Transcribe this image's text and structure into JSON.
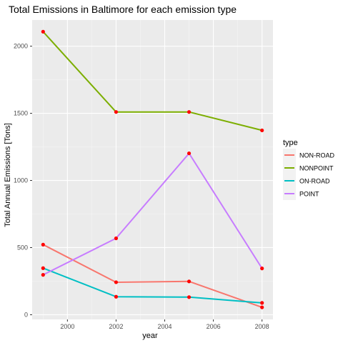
{
  "chart_data": {
    "type": "line",
    "title": "Total Emissions in Baltimore for each emission type",
    "xlabel": "year",
    "ylabel": "Total Annual Emissions [Tons]",
    "x": [
      1999,
      2002,
      2005,
      2008
    ],
    "xlim": [
      1998.55,
      2008.45
    ],
    "ylim": [
      -35,
      2195
    ],
    "xticks": [
      2000,
      2002,
      2004,
      2006,
      2008
    ],
    "yticks": [
      0,
      500,
      1000,
      1500,
      2000
    ],
    "grid": true,
    "legend": {
      "title": "type",
      "placement": "right"
    },
    "point_color": "#ff0000",
    "series": [
      {
        "name": "NON-ROAD",
        "color": "#f8766d",
        "values": [
          522,
          242,
          248,
          55
        ]
      },
      {
        "name": "NONPOINT",
        "color": "#7cae00",
        "values": [
          2108,
          1510,
          1510,
          1373
        ]
      },
      {
        "name": "ON-ROAD",
        "color": "#00bfc4",
        "values": [
          347,
          134,
          131,
          88
        ]
      },
      {
        "name": "POINT",
        "color": "#c77cff",
        "values": [
          297,
          569,
          1202,
          345
        ]
      }
    ]
  }
}
